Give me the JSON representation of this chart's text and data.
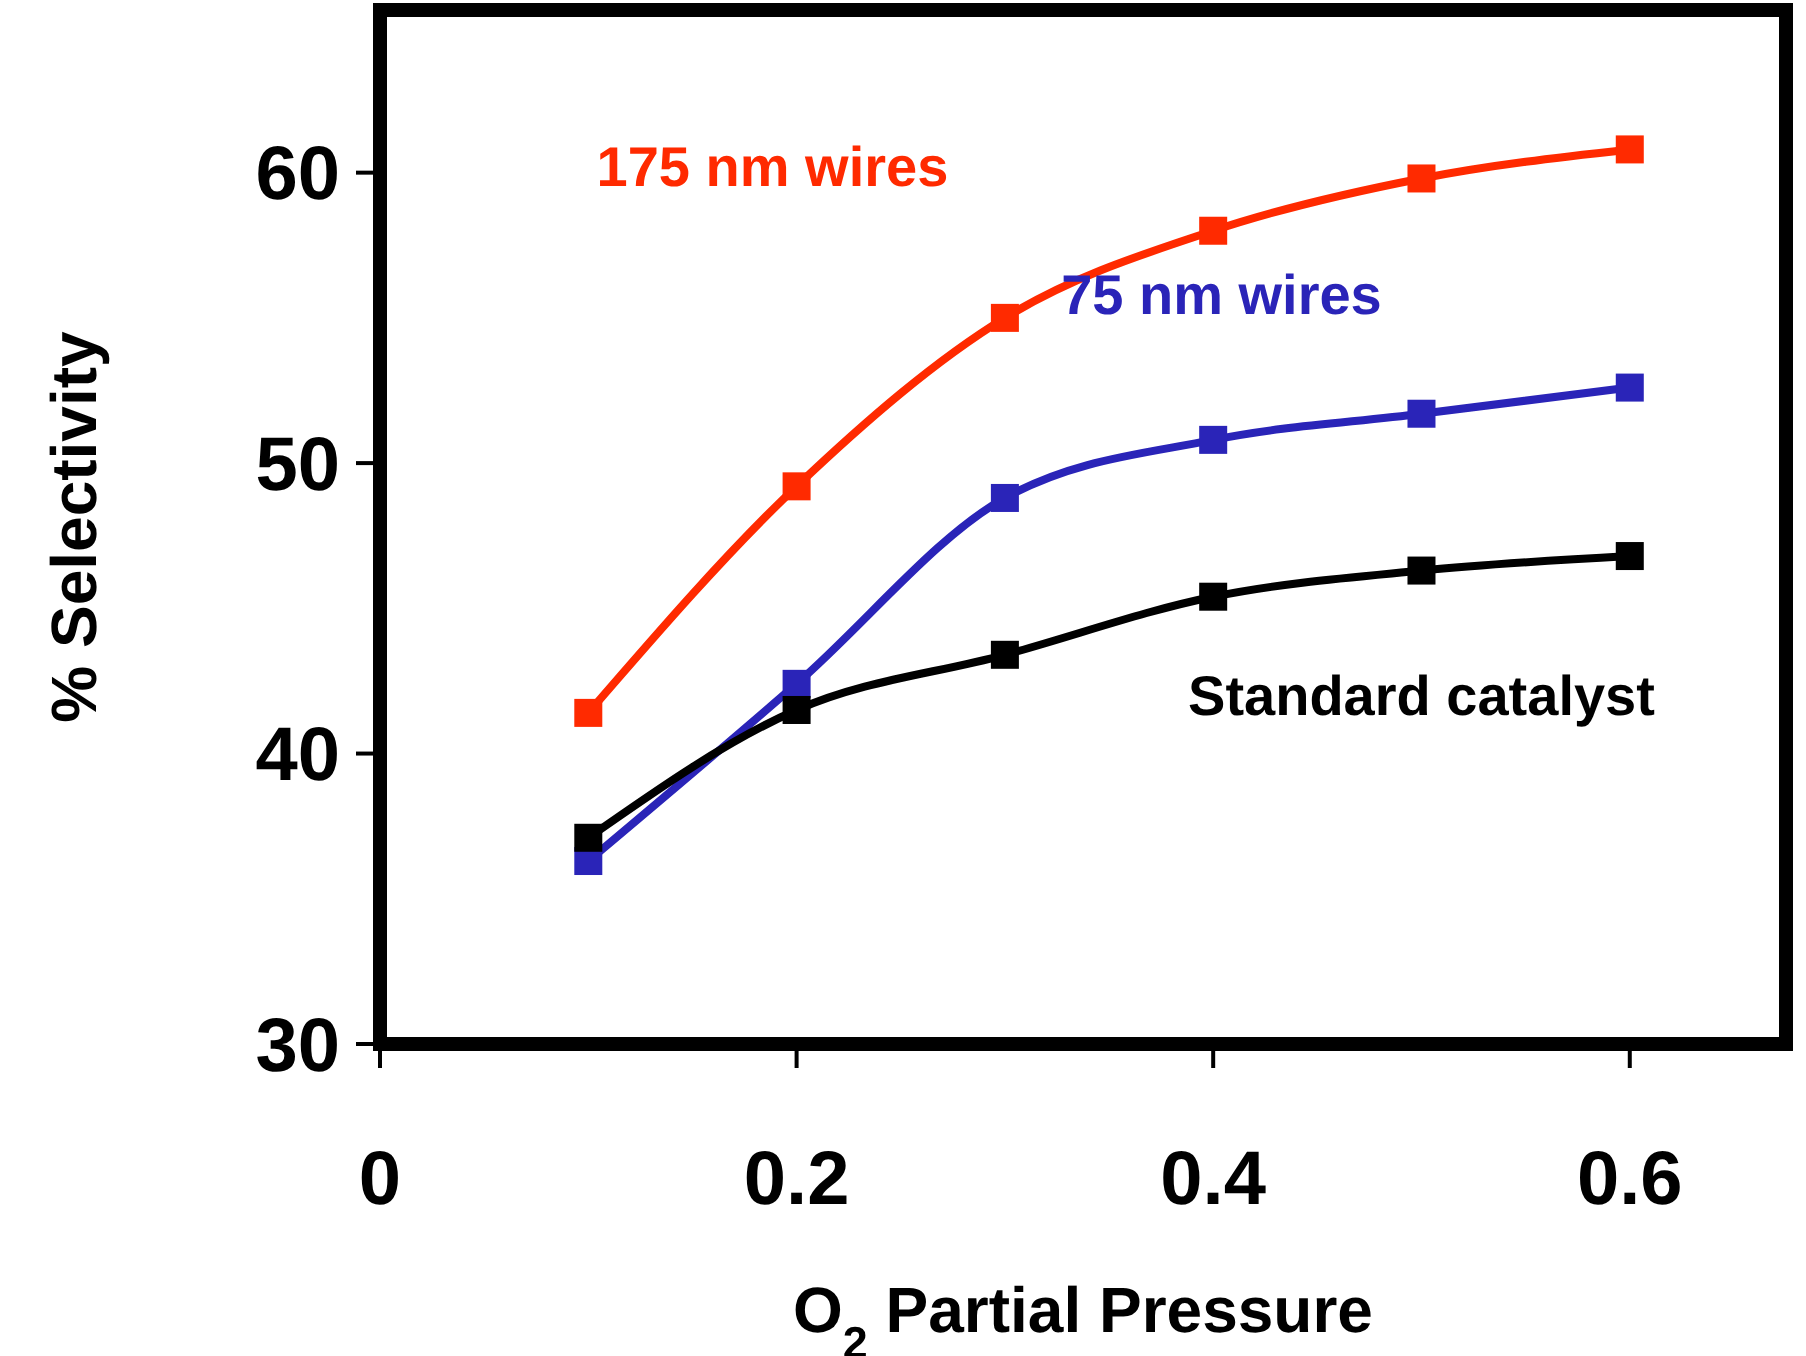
{
  "chart_data": {
    "type": "line",
    "xlabel": "O$_{2}$ Partial Pressure",
    "ylabel": "% Selectivity",
    "x": [
      0.1,
      0.2,
      0.3,
      0.4,
      0.5,
      0.6
    ],
    "series": [
      {
        "name": "175 nm wires",
        "color": "#ff2a00",
        "values": [
          41.4,
          49.2,
          55.0,
          58.0,
          59.8,
          60.8
        ]
      },
      {
        "name": "75 nm wires",
        "color": "#2a24b8",
        "values": [
          36.3,
          42.4,
          48.8,
          50.8,
          51.7,
          52.6
        ]
      },
      {
        "name": "Standard catalyst",
        "color": "#000000",
        "values": [
          37.1,
          41.5,
          43.4,
          45.4,
          46.3,
          46.8
        ]
      }
    ],
    "xlim": [
      0,
      0.675
    ],
    "xticks": [
      0,
      0.2,
      0.4,
      0.6
    ],
    "ylim": [
      30,
      65.6
    ],
    "yticks": [
      30,
      40,
      50,
      60
    ],
    "marker": "square",
    "line_style": "solid",
    "grid": false
  }
}
